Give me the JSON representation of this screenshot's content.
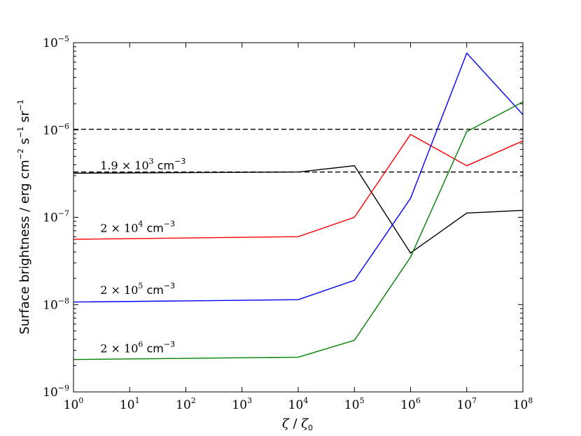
{
  "chart_data": {
    "type": "line",
    "xscale": "log",
    "yscale": "log",
    "xlim": [
      1,
      100000000
    ],
    "ylim": [
      1e-09,
      1e-05
    ],
    "grid": false,
    "xlabel": {
      "sym": "ζ",
      "sep": " / ",
      "sym0": "ζ",
      "sub": "0"
    },
    "ylabel": {
      "text1": "Surface brightness / erg cm",
      "sup1": "−2",
      "text2": " s",
      "sup2": "−1",
      "text3": " sr",
      "sup3": "−1"
    },
    "x_ticks": [
      {
        "base": "10",
        "exp": "0",
        "value": 1
      },
      {
        "base": "10",
        "exp": "1",
        "value": 10
      },
      {
        "base": "10",
        "exp": "2",
        "value": 100
      },
      {
        "base": "10",
        "exp": "3",
        "value": 1000
      },
      {
        "base": "10",
        "exp": "4",
        "value": 10000
      },
      {
        "base": "10",
        "exp": "5",
        "value": 100000
      },
      {
        "base": "10",
        "exp": "6",
        "value": 1000000
      },
      {
        "base": "10",
        "exp": "7",
        "value": 10000000
      },
      {
        "base": "10",
        "exp": "8",
        "value": 100000000
      }
    ],
    "y_ticks": [
      {
        "base": "10",
        "exp": "−9",
        "value": 1e-09
      },
      {
        "base": "10",
        "exp": "−8",
        "value": 1e-08
      },
      {
        "base": "10",
        "exp": "−7",
        "value": 1e-07
      },
      {
        "base": "10",
        "exp": "−6",
        "value": 1e-06
      },
      {
        "base": "10",
        "exp": "−5",
        "value": 1e-05
      }
    ],
    "hlines": [
      {
        "y": 1.02e-06,
        "color": "#000000",
        "style": "dashed"
      },
      {
        "y": 3.3e-07,
        "color": "#000000",
        "style": "dashed"
      }
    ],
    "series": [
      {
        "color": "#000000",
        "x": [
          1,
          10000,
          100000,
          1000000,
          10000000,
          100000000
        ],
        "y": [
          3.2e-07,
          3.3e-07,
          3.9e-07,
          3.9e-08,
          1.12e-07,
          1.2e-07
        ]
      },
      {
        "color": "#ff0000",
        "x": [
          1,
          10000,
          100000,
          1000000,
          10000000,
          100000000
        ],
        "y": [
          5.6e-08,
          6e-08,
          1e-07,
          8.9e-07,
          3.9e-07,
          7.5e-07
        ]
      },
      {
        "color": "#0000ff",
        "x": [
          1,
          10000,
          100000,
          1000000,
          10000000,
          100000000
        ],
        "y": [
          1.07e-08,
          1.14e-08,
          1.9e-08,
          1.65e-07,
          7.6e-06,
          1.5e-06
        ]
      },
      {
        "color": "#008000",
        "x": [
          1,
          10000,
          100000,
          1000000,
          10000000,
          100000000
        ],
        "y": [
          2.35e-09,
          2.5e-09,
          3.9e-09,
          3.5e-08,
          9.6e-07,
          2.1e-06
        ]
      }
    ],
    "annotations": [
      {
        "coef": "1.9 × 10",
        "exp": "3",
        "unit": " cm",
        "unit_exp": "−3",
        "x": 3,
        "y": 3.55e-07
      },
      {
        "coef": "2 × 10",
        "exp": "4",
        "unit": " cm",
        "unit_exp": "−3",
        "x": 3,
        "y": 6.8e-08
      },
      {
        "coef": "2 × 10",
        "exp": "5",
        "unit": " cm",
        "unit_exp": "−3",
        "x": 3,
        "y": 1.32e-08
      },
      {
        "coef": "2 × 10",
        "exp": "6",
        "unit": " cm",
        "unit_exp": "−3",
        "x": 3,
        "y": 2.85e-09
      }
    ]
  }
}
